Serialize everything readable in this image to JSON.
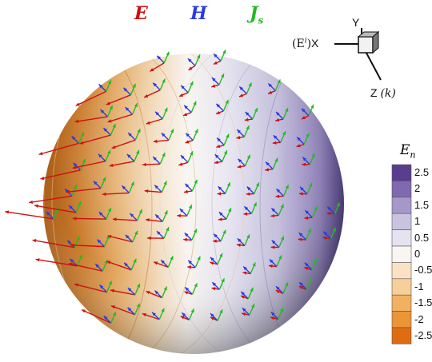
{
  "title_labels": {
    "e_label": "E",
    "h_label": "H",
    "js_label": "J",
    "js_sub": "s",
    "e_color": "#cc1111",
    "h_color": "#2a3be0",
    "js_color": "#22bb22"
  },
  "axes_triad": {
    "y_label": "Y",
    "x_label": "X",
    "x_prefix": "(E",
    "x_prefix_sup": "i",
    "x_prefix_close": ")",
    "z_label": "Z",
    "z_suffix": "(k)"
  },
  "legend": {
    "title": "E",
    "title_sub": "n",
    "entries": [
      {
        "label": "2.5",
        "color": "#5a3d8f"
      },
      {
        "label": "2",
        "color": "#7f69af"
      },
      {
        "label": "1.5",
        "color": "#a598c8"
      },
      {
        "label": "1",
        "color": "#c9c3e0"
      },
      {
        "label": "0.5",
        "color": "#e6e3f0"
      },
      {
        "label": "0",
        "color": "#f8f5f2"
      },
      {
        "label": "-0.5",
        "color": "#fbe2c4"
      },
      {
        "label": "-1",
        "color": "#f7cf99"
      },
      {
        "label": "-1.5",
        "color": "#f2b062"
      },
      {
        "label": "-2",
        "color": "#ec9438"
      },
      {
        "label": "-2.5",
        "color": "#e06c12"
      }
    ]
  }
}
